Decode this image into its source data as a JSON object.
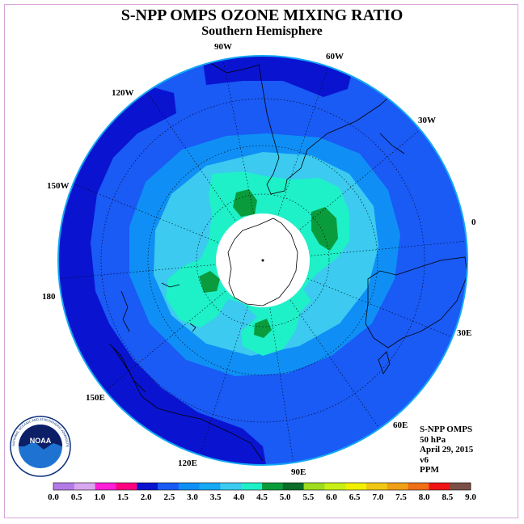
{
  "title": "S-NPP OMPS OZONE MIXING RATIO",
  "subtitle": "Southern Hemisphere",
  "longitude_labels": [
    {
      "text": "90W",
      "lon": -90
    },
    {
      "text": "60W",
      "lon": -60
    },
    {
      "text": "30W",
      "lon": -30
    },
    {
      "text": "0",
      "lon": 0
    },
    {
      "text": "30E",
      "lon": 30
    },
    {
      "text": "60E",
      "lon": 60
    },
    {
      "text": "90E",
      "lon": 90
    },
    {
      "text": "120E",
      "lon": 120
    },
    {
      "text": "150E",
      "lon": 150
    },
    {
      "text": "180",
      "lon": 180
    },
    {
      "text": "150W",
      "lon": -150
    },
    {
      "text": "120W",
      "lon": -120
    }
  ],
  "info": {
    "instrument": "S-NPP OMPS",
    "level": "50 hPa",
    "date": "April 29, 2015",
    "version": "v6",
    "units": "PPM"
  },
  "logo": {
    "text": "NOAA",
    "ring_text": "NATIONAL OCEANIC AND ATMOSPHERIC ADMINISTRATION · U.S. DEPARTMENT OF COMMERCE"
  },
  "colorbar": {
    "colors": [
      "#b57ae8",
      "#d9a6f0",
      "#ff1ed8",
      "#ff0080",
      "#0a14d0",
      "#1a5af5",
      "#0f8ff5",
      "#14a8f5",
      "#3ccaf0",
      "#1ef0c8",
      "#0a9c3c",
      "#0a6e28",
      "#a0dc1e",
      "#c8f014",
      "#f0f000",
      "#f0c814",
      "#f0a014",
      "#f06e14",
      "#f01414",
      "#7a5046"
    ],
    "tick_labels": [
      "0.0",
      "0.5",
      "1.0",
      "1.5",
      "2.0",
      "2.5",
      "3.0",
      "3.5",
      "4.0",
      "4.5",
      "5.0",
      "5.5",
      "6.0",
      "6.5",
      "7.0",
      "7.5",
      "8.0",
      "8.5",
      "9.0"
    ]
  },
  "map_colors": {
    "band_2_0": "#0a14d0",
    "band_2_5": "#1a5af5",
    "band_3_0": "#0f8ff5",
    "band_3_5": "#3ccaf0",
    "band_4_0": "#1ef0c8",
    "band_4_5": "#0a9c3c",
    "outline": "#14a8f5"
  }
}
